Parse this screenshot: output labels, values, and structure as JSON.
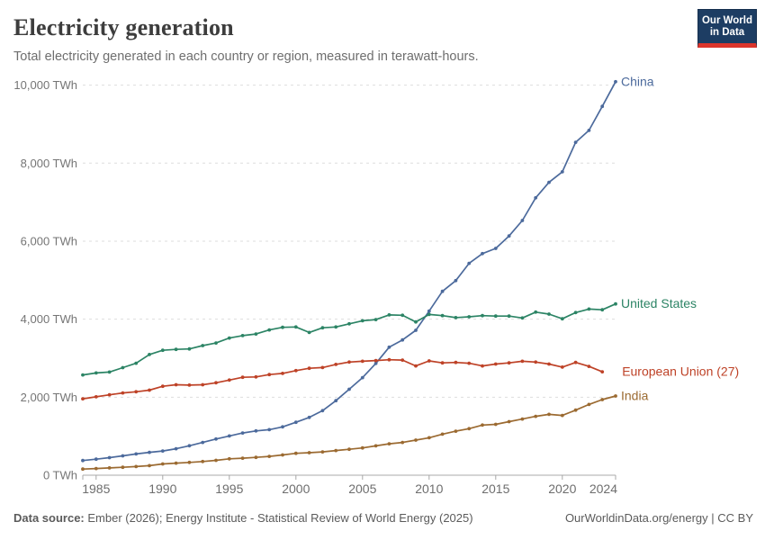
{
  "header": {
    "title": "Electricity generation",
    "subtitle": "Total electricity generated in each country or region, measured in terawatt-hours."
  },
  "logo": {
    "line1": "Our World",
    "line2": "in Data",
    "bg_color": "#1d3d63",
    "bar_color": "#dc352c"
  },
  "footer": {
    "source_label": "Data source:",
    "source_text": " Ember (2026); Energy Institute - Statistical Review of World Energy (2025)",
    "right_text": "OurWorldinData.org/energy | CC BY"
  },
  "chart_data": {
    "type": "line",
    "title": "Electricity generation",
    "unit": "TWh",
    "x_range": [
      1984,
      2024
    ],
    "ylim": [
      0,
      10400
    ],
    "grid": "dashed-horizontal",
    "legend_position": "line-end-labels",
    "y_ticks": [
      {
        "value": 0,
        "label": "0 TWh"
      },
      {
        "value": 2000,
        "label": "2,000 TWh"
      },
      {
        "value": 4000,
        "label": "4,000 TWh"
      },
      {
        "value": 6000,
        "label": "6,000 TWh"
      },
      {
        "value": 8000,
        "label": "8,000 TWh"
      },
      {
        "value": 10000,
        "label": "10,000 TWh"
      }
    ],
    "x_ticks": [
      {
        "year": 1985,
        "label": "1985"
      },
      {
        "year": 1990,
        "label": "1990"
      },
      {
        "year": 1995,
        "label": "1995"
      },
      {
        "year": 2000,
        "label": "2000"
      },
      {
        "year": 2005,
        "label": "2005"
      },
      {
        "year": 2010,
        "label": "2010"
      },
      {
        "year": 2015,
        "label": "2015"
      },
      {
        "year": 2020,
        "label": "2020"
      },
      {
        "year": 2024,
        "label": "2024",
        "align": "end"
      }
    ],
    "series": [
      {
        "name": "China",
        "color": "#4C6A9C",
        "start_year": 1984,
        "label_offset": 6,
        "values": [
          377,
          411,
          450,
          497,
          545,
          585,
          621,
          678,
          754,
          839,
          928,
          1007,
          1081,
          1135,
          1167,
          1239,
          1356,
          1481,
          1654,
          1911,
          2203,
          2500,
          2866,
          3282,
          3467,
          3715,
          4207,
          4713,
          4988,
          5432,
          5680,
          5815,
          6133,
          6529,
          7111,
          7509,
          7779,
          8534,
          8840,
          9456,
          10087
        ]
      },
      {
        "name": "United States",
        "color": "#2C8465",
        "start_year": 1984,
        "label_offset": 6,
        "values": [
          2570,
          2621,
          2645,
          2757,
          2871,
          3093,
          3203,
          3226,
          3237,
          3322,
          3389,
          3517,
          3578,
          3620,
          3724,
          3790,
          3800,
          3660,
          3780,
          3800,
          3880,
          3960,
          3990,
          4110,
          4100,
          3930,
          4120,
          4090,
          4040,
          4060,
          4090,
          4080,
          4080,
          4030,
          4180,
          4130,
          4010,
          4170,
          4260,
          4240,
          4390
        ]
      },
      {
        "name": "European Union (27)",
        "color": "#BE4227",
        "start_year": 1984,
        "label_offset": 22,
        "values": [
          1960,
          2010,
          2060,
          2110,
          2140,
          2180,
          2280,
          2320,
          2310,
          2320,
          2370,
          2440,
          2510,
          2520,
          2580,
          2610,
          2680,
          2740,
          2760,
          2840,
          2900,
          2920,
          2940,
          2960,
          2950,
          2800,
          2930,
          2880,
          2890,
          2870,
          2800,
          2850,
          2880,
          2920,
          2900,
          2850,
          2770,
          2890,
          2790,
          2650
        ]
      },
      {
        "name": "India",
        "color": "#9B6A31",
        "start_year": 1984,
        "label_offset": 6,
        "values": [
          157,
          170,
          187,
          202,
          221,
          245,
          289,
          310,
          327,
          351,
          380,
          420,
          436,
          457,
          483,
          519,
          561,
          576,
          597,
          633,
          665,
          699,
          753,
          805,
          841,
          899,
          960,
          1053,
          1128,
          1193,
          1286,
          1304,
          1372,
          1439,
          1509,
          1559,
          1533,
          1669,
          1814,
          1939,
          2030
        ]
      }
    ]
  }
}
